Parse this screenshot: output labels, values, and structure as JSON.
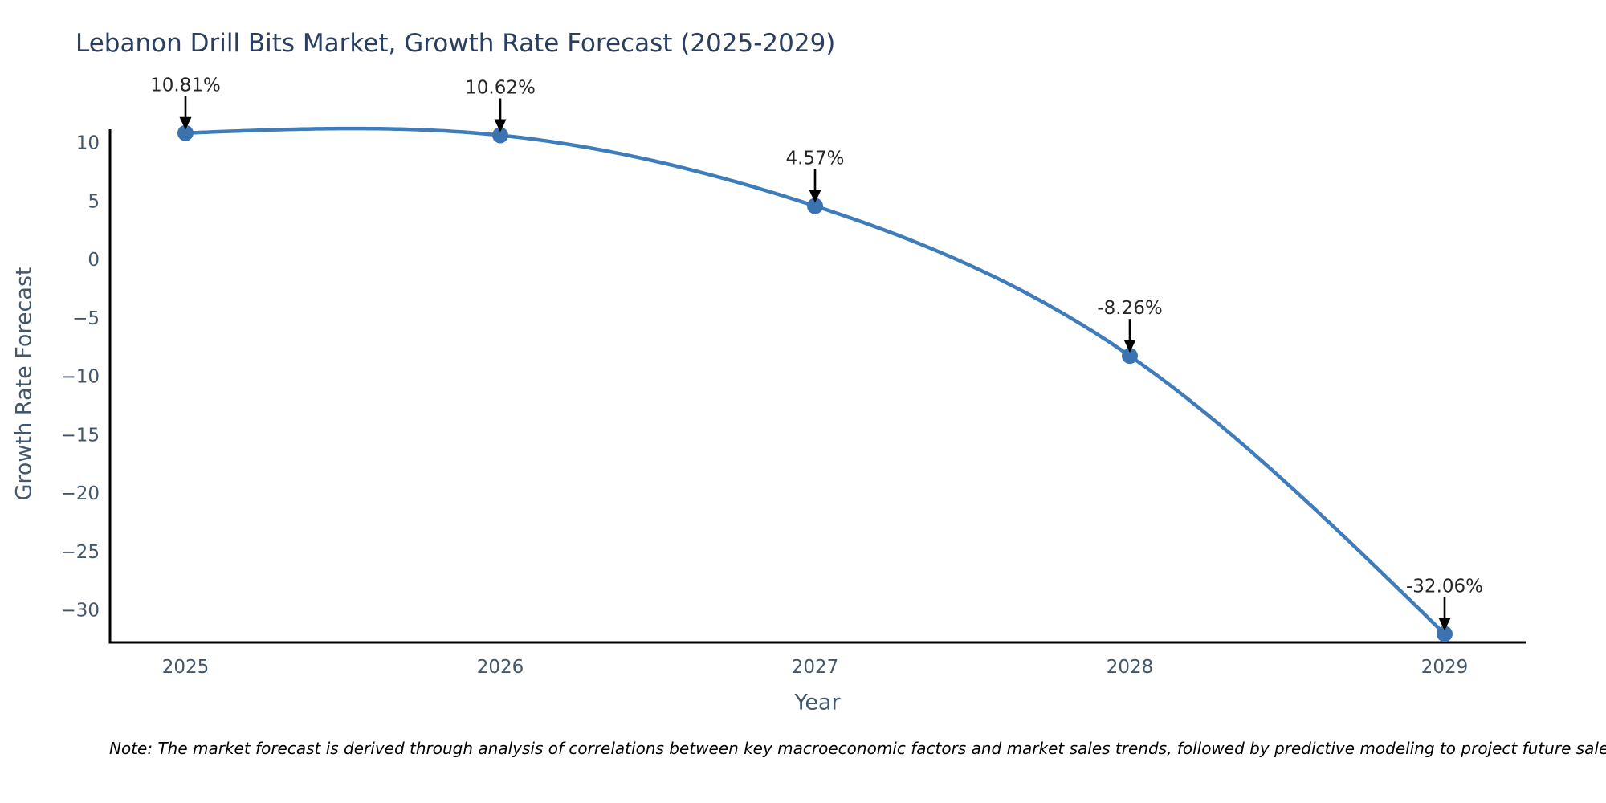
{
  "chart_data": {
    "type": "line",
    "title": "Lebanon Drill Bits Market, Growth Rate Forecast (2025-2029)",
    "xlabel": "Year",
    "ylabel": "Growth Rate Forecast",
    "x": [
      2025,
      2026,
      2027,
      2028,
      2029
    ],
    "values": [
      10.81,
      10.62,
      4.57,
      -8.26,
      -32.06
    ],
    "point_labels": [
      "10.81%",
      "10.62%",
      "4.57%",
      "-8.26%",
      "-32.06%"
    ],
    "y_ticks": [
      10,
      5,
      0,
      -5,
      -10,
      -15,
      -20,
      -25,
      -30
    ],
    "ylim": [
      -33.2,
      11.1
    ],
    "line_shape": "spline",
    "grid": false,
    "legend_position": "none",
    "colors": {
      "line": "#3f7cba",
      "marker": "#3a73b0",
      "axis": "#000000",
      "title": "#2a3f5f",
      "axis_label": "#42576b",
      "tick_label": "#42576b",
      "annotation_text": "#262626",
      "annotation_arrow": "#000000",
      "background": "#ffffff"
    }
  },
  "note": {
    "text": "Note: The market forecast is derived through analysis of correlations between key macroeconomic factors and market sales trends, followed by predictive modeling to project future sales."
  }
}
